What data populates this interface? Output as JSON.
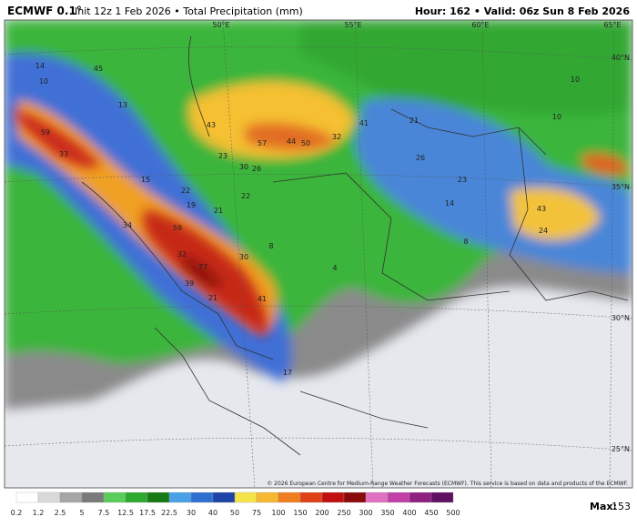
{
  "header": {
    "title": "ECMWF 0.1°",
    "subtitle": "Init 12z 1 Feb 2026 • Total Precipitation (mm)",
    "right": "Hour: 162 • Valid: 06z Sun 8 Feb 2026"
  },
  "map": {
    "lon_labels": [
      "50°E",
      "55°E",
      "60°E",
      "65°E"
    ],
    "lat_labels": [
      "40°N",
      "35°N",
      "30°N",
      "25°N"
    ],
    "point_values": [
      59,
      33,
      14,
      13,
      45,
      43,
      57,
      44,
      50,
      32,
      41,
      21,
      26,
      23,
      43,
      24,
      10,
      10,
      30,
      26,
      23,
      22,
      22,
      19,
      21,
      59,
      32,
      77,
      30,
      39,
      21,
      41,
      34,
      15,
      8,
      4,
      14,
      8,
      17,
      10
    ],
    "credit": "© 2026 European Centre for Medium-Range Weather Forecasts (ECMWF). This service is based on data and products of the ECMWF."
  },
  "legend": {
    "levels": [
      0.2,
      1.2,
      2.5,
      5,
      7.5,
      12.5,
      17.5,
      22.5,
      30,
      40,
      50,
      75,
      100,
      150,
      200,
      250,
      300,
      350,
      400,
      450,
      500
    ],
    "max_label": "Max:",
    "max_value": 153
  }
}
